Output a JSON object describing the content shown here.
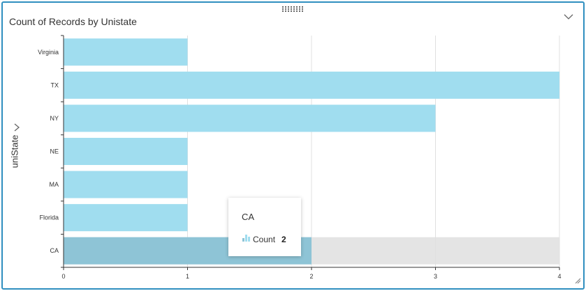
{
  "panel": {
    "title": "Count of Records by Unistate",
    "y_axis_label": "uniState",
    "collapse_icon": "chevron-down-icon",
    "axis_expand_icon": "chevron-right-icon",
    "drag_icon": "drag-handle-icon",
    "resize_icon": "resize-corner-icon"
  },
  "colors": {
    "bar": "#a0ddef",
    "bar_selected": "#8ec4d6",
    "selection_band": "#e4e4e4",
    "frame": "#2f8fbf"
  },
  "tooltip": {
    "category": "CA",
    "series_label": "Count",
    "value": "2"
  },
  "chart_data": {
    "type": "bar",
    "orientation": "horizontal",
    "categories": [
      "Virginia",
      "TX",
      "NY",
      "NE",
      "MA",
      "Florida",
      "CA"
    ],
    "values": [
      1,
      4,
      3,
      1,
      1,
      1,
      2
    ],
    "title": "Count of Records by Unistate",
    "ylabel": "uniState",
    "xlabel": "",
    "xlim": [
      0,
      4
    ],
    "x_ticks": [
      0,
      1,
      2,
      3,
      4
    ],
    "grid": true,
    "selected_category": "CA"
  }
}
